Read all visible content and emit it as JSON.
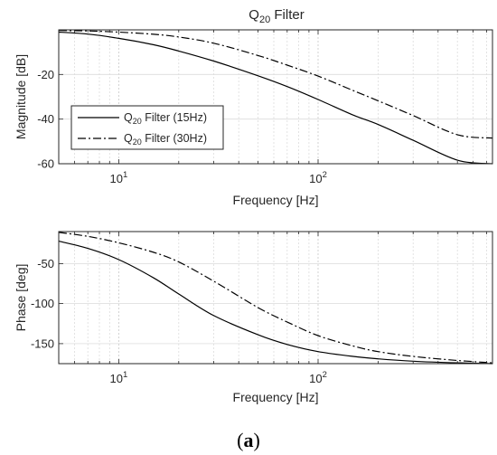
{
  "figure": {
    "caption_open": "(",
    "caption_letter": "a",
    "caption_close": ")"
  },
  "chart_data": [
    {
      "type": "line",
      "title": "Q",
      "title_subscript": "20",
      "title_suffix": " Filter",
      "xlabel": "Frequency [Hz]",
      "ylabel": "Magnitude [dB]",
      "xscale": "log",
      "xlim": [
        5,
        750
      ],
      "ylim": [
        -60,
        0
      ],
      "xticks": [
        10,
        100
      ],
      "xtick_labels": [
        {
          "base": "10",
          "exp": "1"
        },
        {
          "base": "10",
          "exp": "2"
        }
      ],
      "yticks": [
        -20,
        -40,
        -60
      ],
      "ytick_labels": [
        "-20",
        "-40",
        "-60"
      ],
      "grid": true,
      "legend_position": "center-left",
      "series": [
        {
          "name": "Q",
          "name_subscript": "20",
          "name_suffix": " Filter (15Hz)",
          "style": "solid",
          "color": "#000000",
          "x": [
            5,
            7,
            10,
            15,
            20,
            30,
            50,
            70,
            100,
            150,
            200,
            300,
            500,
            750
          ],
          "y": [
            -1.0,
            -1.9,
            -3.8,
            -6.7,
            -9.5,
            -14.0,
            -20.6,
            -25.4,
            -31.2,
            -38.2,
            -42.4,
            -49.5,
            -58.4,
            -60.0
          ]
        },
        {
          "name": "Q",
          "name_subscript": "20",
          "name_suffix": " Filter (30Hz)",
          "style": "dashdot",
          "color": "#000000",
          "x": [
            5,
            7,
            10,
            15,
            20,
            30,
            50,
            70,
            100,
            150,
            200,
            300,
            500,
            750
          ],
          "y": [
            -0.3,
            -0.5,
            -1.0,
            -2.0,
            -3.2,
            -6.0,
            -11.5,
            -15.8,
            -20.7,
            -27.2,
            -31.8,
            -38.4,
            -47.0,
            -48.5
          ]
        }
      ]
    },
    {
      "type": "line",
      "xlabel": "Frequency [Hz]",
      "ylabel": "Phase [deg]",
      "xscale": "log",
      "xlim": [
        5,
        750
      ],
      "ylim": [
        -175,
        -10
      ],
      "xticks": [
        10,
        100
      ],
      "xtick_labels": [
        {
          "base": "10",
          "exp": "1"
        },
        {
          "base": "10",
          "exp": "2"
        }
      ],
      "yticks": [
        -50,
        -100,
        -150
      ],
      "ytick_labels": [
        "-50",
        "-100",
        "-150"
      ],
      "grid": true,
      "series": [
        {
          "name": "Q20 Filter (15Hz)",
          "style": "solid",
          "color": "#000000",
          "x": [
            5,
            7,
            10,
            15,
            20,
            30,
            50,
            70,
            100,
            150,
            200,
            300,
            500,
            750
          ],
          "y": [
            -22,
            -31,
            -45,
            -68,
            -88,
            -115,
            -139,
            -151,
            -160,
            -166,
            -169,
            -172,
            -174,
            -175
          ]
        },
        {
          "name": "Q20 Filter (30Hz)",
          "style": "dashdot",
          "color": "#000000",
          "x": [
            5,
            7,
            10,
            15,
            20,
            30,
            50,
            70,
            100,
            150,
            200,
            300,
            500,
            750
          ],
          "y": [
            -11,
            -16,
            -24,
            -36,
            -48,
            -72,
            -105,
            -123,
            -140,
            -153,
            -160,
            -166,
            -171,
            -174
          ]
        }
      ]
    }
  ]
}
